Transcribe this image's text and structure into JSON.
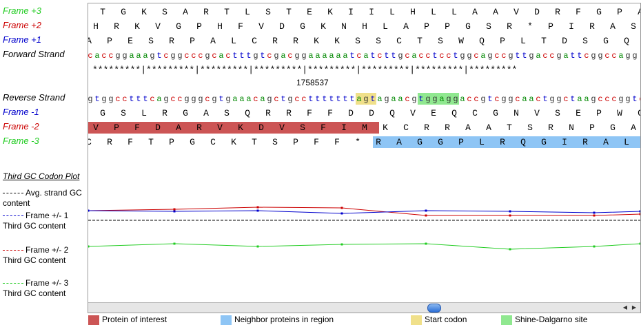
{
  "labels": {
    "frame_p3": "Frame +3",
    "frame_p2": "Frame +2",
    "frame_p1": "Frame +1",
    "forward": "Forward Strand",
    "reverse": "Reverse Strand",
    "frame_m1": "Frame -1",
    "frame_m2": "Frame -2",
    "frame_m3": "Frame -3"
  },
  "colors": {
    "frame1": "#0000cc",
    "frame2": "#cc0000",
    "frame3": "#22cc22",
    "protein": "#cc5555",
    "neighbor": "#8ec5f5",
    "start": "#f0e08a",
    "shine": "#90e890"
  },
  "frame_p3_aa": [
    "T",
    "G",
    "K",
    "S",
    "A",
    "R",
    "T",
    "L",
    "S",
    "T",
    "E",
    "K",
    "I",
    "I",
    "L",
    "H",
    "L",
    "L",
    "A",
    "A",
    "V",
    "D",
    "R",
    "F",
    "G",
    "P",
    "A"
  ],
  "frame_p2_aa": [
    "H",
    "R",
    "K",
    "V",
    "G",
    "P",
    "H",
    "F",
    "V",
    "D",
    "G",
    "K",
    "N",
    "H",
    "L",
    "A",
    "P",
    "P",
    "G",
    "S",
    "R",
    "*",
    "P",
    "I",
    "R",
    "A",
    "S"
  ],
  "frame_p1_aa": [
    "A",
    "P",
    "E",
    "S",
    "R",
    "P",
    "A",
    "L",
    "C",
    "R",
    "R",
    "K",
    "K",
    "S",
    "S",
    "C",
    "T",
    "S",
    "W",
    "Q",
    "P",
    "L",
    "T",
    "D",
    "S",
    "G",
    "Q"
  ],
  "forward_seq": "caccggaaagtcggcccgcactttgtcgacggaaaaaatcatcttgcacctcctggcagccgttgaccgattcggccagg",
  "reverse_seq": "gtggcctttcagccgggcgtgaaacagctgcctttttttagtagaacgtggaggaccgtcggcaactggctaagcccggtcc",
  "tick_marks": "*********|*********|*********|*********|*********|*********|*********|*********",
  "position": "1758537",
  "frame_m1_aa": [
    "G",
    "S",
    "L",
    "R",
    "G",
    "A",
    "S",
    "Q",
    "R",
    "R",
    "F",
    "F",
    "D",
    "D",
    "Q",
    "V",
    "E",
    "Q",
    "C",
    "G",
    "N",
    "V",
    "S",
    "E",
    "P",
    "W",
    "G"
  ],
  "frame_m2_aa": [
    "V",
    "P",
    "F",
    "D",
    "A",
    "R",
    "V",
    "K",
    "D",
    "V",
    "S",
    "F",
    "I",
    "M",
    "K",
    "C",
    "R",
    "R",
    "A",
    "A",
    "T",
    "S",
    "R",
    "N",
    "P",
    "G",
    "A"
  ],
  "frame_m3_aa": [
    "C",
    "R",
    "F",
    "T",
    "P",
    "G",
    "C",
    "K",
    "T",
    "S",
    "P",
    "F",
    "F",
    "*",
    "R",
    "A",
    "G",
    "G",
    "P",
    "L",
    "R",
    "Q",
    "G",
    "I",
    "R",
    "A",
    "L"
  ],
  "plot": {
    "title": "Third GC Codon Plot",
    "legend": [
      {
        "name": "Avg. strand GC content",
        "color": "#000000"
      },
      {
        "name": "Frame +/- 1 Third GC content",
        "color": "#0000cc"
      },
      {
        "name": "Frame +/- 2 Third GC content",
        "color": "#cc0000"
      },
      {
        "name": "Frame +/- 3 Third GC content",
        "color": "#22cc22"
      }
    ]
  },
  "legend": [
    {
      "label": "Protein of interest",
      "color": "#cc5555"
    },
    {
      "label": "Neighbor proteins in region",
      "color": "#8ec5f5"
    },
    {
      "label": "Start codon",
      "color": "#f0e08a"
    },
    {
      "label": "Shine-Dalgarno site",
      "color": "#90e890"
    }
  ]
}
